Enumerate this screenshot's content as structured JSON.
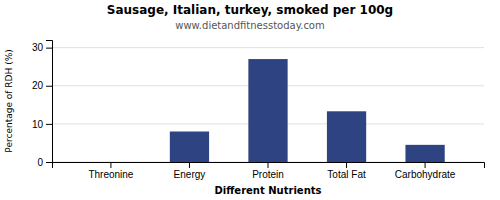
{
  "chart_data": {
    "type": "bar",
    "title": "Sausage, Italian, turkey, smoked per 100g",
    "subtitle": "www.dietandfitnesstoday.com",
    "xlabel": "Different Nutrients",
    "ylabel": "Percentage of RDH (%)",
    "categories": [
      "Threonine",
      "Energy",
      "Protein",
      "Total Fat",
      "Carbohydrate"
    ],
    "values": [
      0,
      8,
      27,
      13.3,
      4.5
    ],
    "color": "#2e4482",
    "ylim": [
      0,
      32
    ],
    "yticks": [
      0,
      10,
      20,
      30
    ],
    "grid": true
  }
}
